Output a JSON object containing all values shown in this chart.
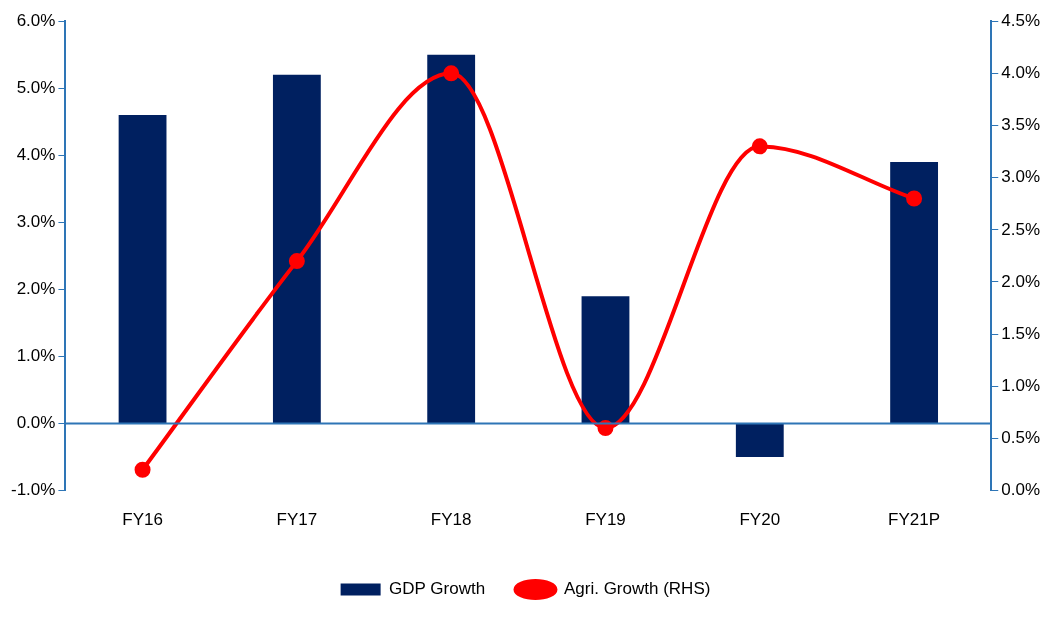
{
  "chart_data": {
    "type": "bar",
    "categories": [
      "FY16",
      "FY17",
      "FY18",
      "FY19",
      "FY20",
      "FY21P"
    ],
    "series": [
      {
        "name": "GDP Growth",
        "color": "#002060",
        "values": [
          4.6,
          5.2,
          5.5,
          1.9,
          -0.5,
          3.9
        ]
      },
      {
        "name": "Agri. Growth (RHS)",
        "type": "line",
        "axis": "y2",
        "color": "#ff0000",
        "values": [
          0.2,
          2.2,
          4.0,
          0.6,
          3.3,
          2.8
        ]
      }
    ],
    "ylim": [
      -1,
      6
    ],
    "yticks": [
      {
        "value": -1,
        "label": "-1.0%"
      },
      {
        "value": 0,
        "label": "0.0%"
      },
      {
        "value": 1,
        "label": "1.0%"
      },
      {
        "value": 2,
        "label": "2.0%"
      },
      {
        "value": 3,
        "label": "3.0%"
      },
      {
        "value": 4,
        "label": "4.0%"
      },
      {
        "value": 5,
        "label": "5.0%"
      },
      {
        "value": 6,
        "label": "6.0%"
      }
    ],
    "y2lim": [
      0,
      4.5
    ],
    "y2ticks": [
      {
        "value": 0,
        "label": "0.0%"
      },
      {
        "value": 0.5,
        "label": "0.5%"
      },
      {
        "value": 1,
        "label": "1.0%"
      },
      {
        "value": 1.5,
        "label": "1.5%"
      },
      {
        "value": 2,
        "label": "2.0%"
      },
      {
        "value": 2.5,
        "label": "2.5%"
      },
      {
        "value": 3,
        "label": "3.0%"
      },
      {
        "value": 3.5,
        "label": "3.5%"
      },
      {
        "value": 4,
        "label": "4.0%"
      },
      {
        "value": 4.5,
        "label": "4.5%"
      }
    ],
    "ref_lines": [
      {
        "axis": "y",
        "value": 0,
        "color": "#2e75b6"
      }
    ],
    "grid": false,
    "legend": "bottom",
    "marker": "circle",
    "line_style": "solid"
  }
}
